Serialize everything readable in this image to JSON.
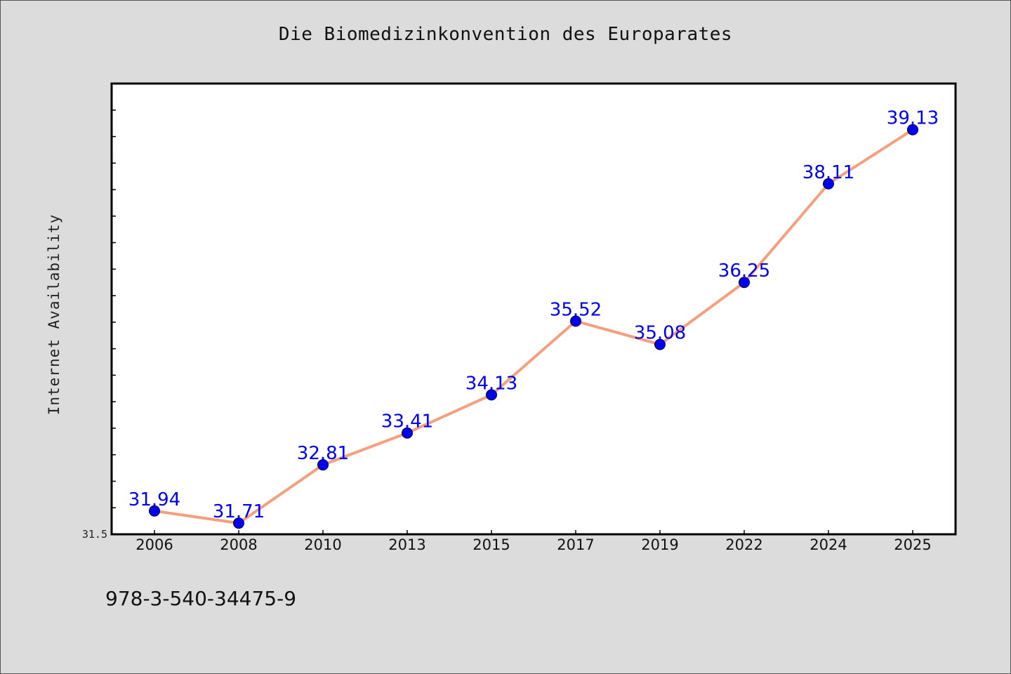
{
  "chart_data": {
    "type": "line",
    "title": "Die Biomedizinkonvention des Europarates",
    "xlabel": "",
    "ylabel": "Internet Availability",
    "categories": [
      "2006",
      "2008",
      "2010",
      "2013",
      "2015",
      "2017",
      "2019",
      "2022",
      "2024",
      "2025"
    ],
    "series": [
      {
        "values": [
          31.94,
          31.71,
          32.81,
          33.41,
          34.13,
          35.52,
          35.08,
          36.25,
          38.11,
          39.13
        ],
        "data_labels": [
          "31.94",
          "31.71",
          "32.81",
          "33.41",
          "34.13",
          "35.52",
          "35.08",
          "36.25",
          "38.11",
          "39.13"
        ]
      }
    ],
    "ylim": [
      31.5,
      40.0
    ],
    "y_tick_labels": [
      "31.5"
    ],
    "grid": false,
    "legend": "none",
    "colors": {
      "line": "#f4a07e",
      "marker": "#0000ee",
      "data_label": "#0000ee",
      "plot_background": "#ffffff",
      "page_background": "#dcdcdc"
    }
  },
  "footnote": "978-3-540-34475-9"
}
